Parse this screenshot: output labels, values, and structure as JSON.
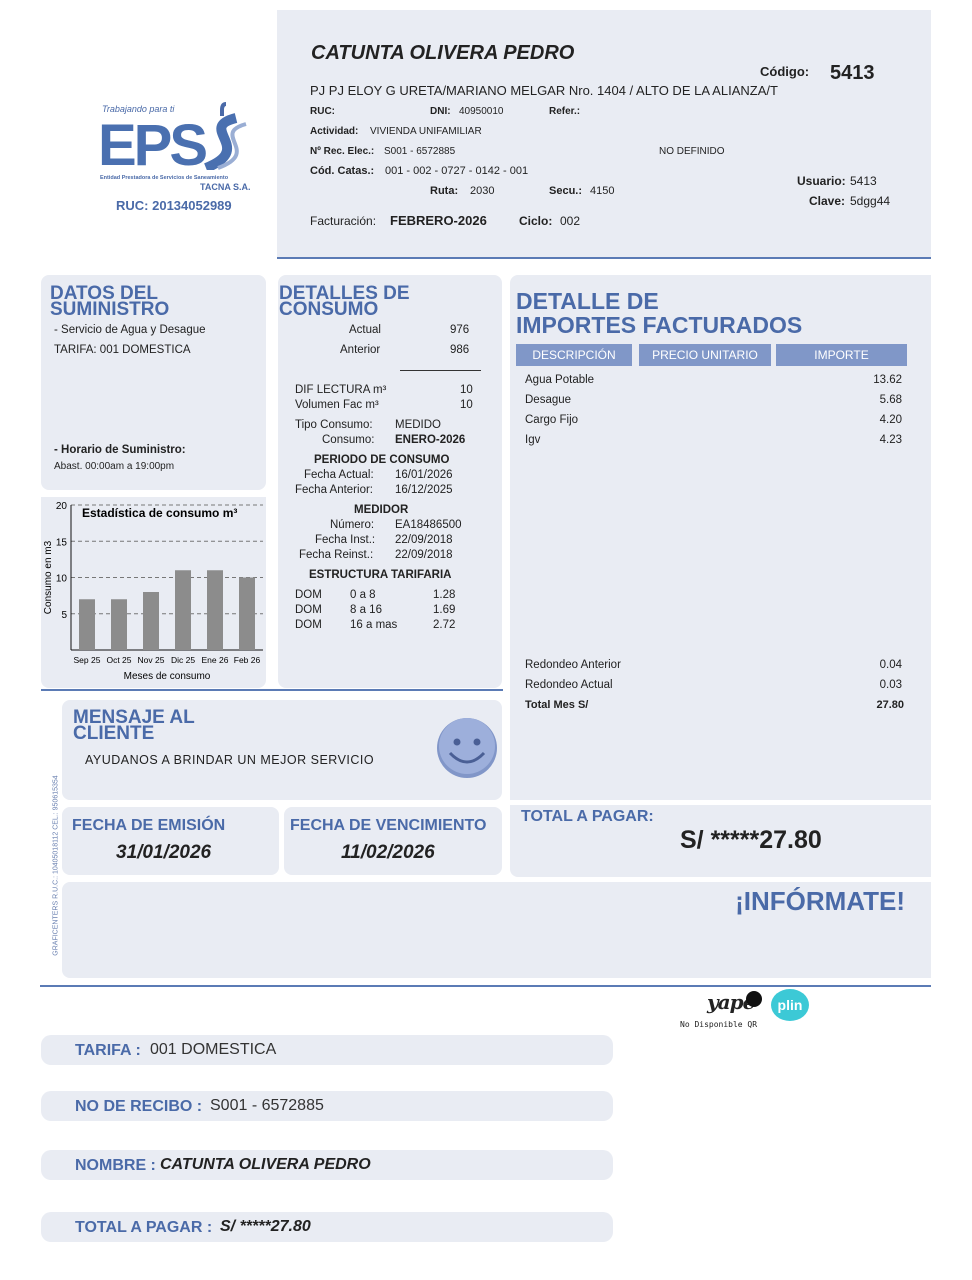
{
  "logo": {
    "tagline": "Trabajando para ti",
    "brand": "EPS",
    "entity": "Entidad Prestadora de Servicios de Saneamiento",
    "city": "TACNA S.A.",
    "ruc": "RUC: 20134052989"
  },
  "header": {
    "name": "CATUNTA OLIVERA PEDRO",
    "codigo_label": "Código:",
    "codigo": "5413",
    "address": "PJ PJ ELOY G URETA/MARIANO MELGAR Nro. 1404 / ALTO DE LA ALIANZA/T",
    "ruc_label": "RUC:",
    "ruc": "",
    "dni_label": "DNI:",
    "dni": "40950010",
    "refer_label": "Refer.:",
    "refer": "",
    "actividad_label": "Actividad:",
    "actividad": "VIVIENDA UNIFAMILIAR",
    "rec_label": "Nº Rec. Elec.:",
    "rec": "S001 - 6572885",
    "no_definido": "NO DEFINIDO",
    "catas_label": "Cód. Catas.:",
    "catas": "001 - 002 - 0727 - 0142 - 001",
    "ruta_label": "Ruta:",
    "ruta": "2030",
    "secu_label": "Secu.:",
    "secu": "4150",
    "usuario_label": "Usuario:",
    "usuario": "5413",
    "clave_label": "Clave:",
    "clave": "5dgg44",
    "facturacion_label": "Facturación:",
    "facturacion": "FEBRERO-2026",
    "ciclo_label": "Ciclo:",
    "ciclo": "002"
  },
  "suministro": {
    "title1": "DATOS DEL",
    "title2": "SUMINISTRO",
    "servicio": "- Servicio de Agua y Desague",
    "tarifa": "TARIFA: 001 DOMESTICA",
    "horario_label": "- Horario de Suministro:",
    "horario": "Abast. 00:00am a 19:00pm"
  },
  "chart_data": {
    "type": "bar",
    "title": "Estadística de consumo m³",
    "xlabel": "Meses de consumo",
    "ylabel": "Consumo en m3",
    "categories": [
      "Sep 25",
      "Oct 25",
      "Nov 25",
      "Dic 25",
      "Ene 26",
      "Feb 26"
    ],
    "values": [
      7,
      7,
      8,
      11,
      11,
      10
    ],
    "ylim": [
      0,
      20
    ],
    "yticks": [
      5,
      10,
      15,
      20
    ],
    "grid": true,
    "bar_color": "#8c8c8c"
  },
  "consumo": {
    "title1": "DETALLES DE",
    "title2": "CONSUMO",
    "actual_label": "Actual",
    "actual": "976",
    "anterior_label": "Anterior",
    "anterior": "986",
    "dif_label": "DIF LECTURA m³",
    "dif": "10",
    "vol_label": "Volumen Fac m³",
    "vol": "10",
    "tipo_label": "Tipo Consumo:",
    "tipo": "MEDIDO",
    "cons_label": "Consumo:",
    "cons": "ENERO-2026",
    "periodo": "PERIODO DE CONSUMO",
    "fa_label": "Fecha Actual:",
    "fa": "16/01/2026",
    "fant_label": "Fecha Anterior:",
    "fant": "16/12/2025",
    "medidor": "MEDIDOR",
    "num_label": "Número:",
    "num": "EA18486500",
    "fi_label": "Fecha Inst.:",
    "fi": "22/09/2018",
    "fr_label": "Fecha Reinst.:",
    "fr": "22/09/2018",
    "estructura": "ESTRUCTURA TARIFARIA",
    "tarifas": [
      [
        "DOM",
        "0 a 8",
        "1.28"
      ],
      [
        "DOM",
        "8 a 16",
        "1.69"
      ],
      [
        "DOM",
        "16 a mas",
        "2.72"
      ]
    ]
  },
  "importes": {
    "title1": "DETALLE DE",
    "title2": "IMPORTES FACTURADOS",
    "cols": [
      "DESCRIPCIÓN",
      "PRECIO UNITARIO",
      "IMPORTE"
    ],
    "items": [
      [
        "Agua Potable",
        "13.62"
      ],
      [
        "Desague",
        "5.68"
      ],
      [
        "Cargo Fijo",
        "4.20"
      ],
      [
        "Igv",
        "4.23"
      ]
    ],
    "redondeo_ant_label": "Redondeo Anterior",
    "redondeo_ant": "0.04",
    "redondeo_act_label": "Redondeo Actual",
    "redondeo_act": "0.03",
    "total_mes_label": "Total Mes S/",
    "total_mes": "27.80"
  },
  "mensaje": {
    "title1": "MENSAJE AL",
    "title2": "CLIENTE",
    "text": "AYUDANOS A BRINDAR UN MEJOR SERVICIO"
  },
  "printer": "GRAFICENTERS R.U.C.: 10405018112 CEL.: 950615354",
  "fechas": {
    "emision_label": "FECHA DE EMISIÓN",
    "emision": "31/01/2026",
    "venc_label": "FECHA DE VENCIMIENTO",
    "venc": "11/02/2026"
  },
  "total": {
    "label": "TOTAL A PAGAR:",
    "value": "S/ *****27.80"
  },
  "informate": "¡INFÓRMATE!",
  "pagos": {
    "yape": "yape",
    "plin": "plin",
    "qr": "No Disponible QR"
  },
  "resumen": [
    {
      "label": "TARIFA :",
      "value": "001 DOMESTICA"
    },
    {
      "label": "NO DE RECIBO :",
      "value": "S001 - 6572885"
    },
    {
      "label": "NOMBRE :",
      "value": "CATUNTA OLIVERA PEDRO"
    },
    {
      "label": "TOTAL A PAGAR :",
      "value": "S/ *****27.80"
    }
  ],
  "colors": {
    "accent": "#4a6aa8",
    "panel": "#e9ecf3",
    "header_cell": "#8097c8"
  }
}
